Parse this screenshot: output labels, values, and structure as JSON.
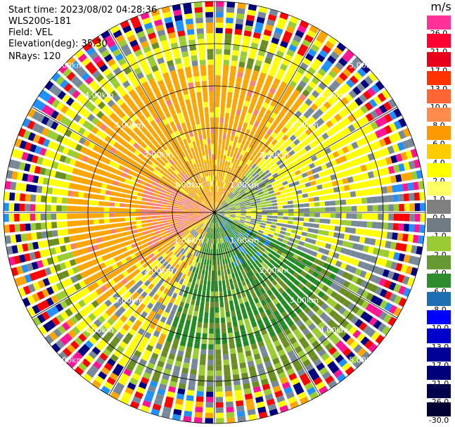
{
  "header": {
    "start_time": "Start time: 2023/08/02 04:28:36",
    "station": "WLS200s-181",
    "field": "Field: VEL",
    "elevation": "Elevation(deg): 35.30",
    "nrays": "NRays: 120"
  },
  "colorbar": {
    "unit": "m/s",
    "levels": [
      {
        "label": "26.0",
        "color": "#ff3399"
      },
      {
        "label": "21.0",
        "color": "#ff0033"
      },
      {
        "label": "17.0",
        "color": "#e8001a"
      },
      {
        "label": "13.0",
        "color": "#ff3300"
      },
      {
        "label": "10.0",
        "color": "#ff6633"
      },
      {
        "label": "8.0",
        "color": "#ff8c4d"
      },
      {
        "label": "6.0",
        "color": "#ff9900"
      },
      {
        "label": "4.0",
        "color": "#ffcc00"
      },
      {
        "label": "2.0",
        "color": "#ffff00"
      },
      {
        "label": "1.0",
        "color": "#ffff66"
      },
      {
        "label": "0.0",
        "color": "#808080"
      },
      {
        "label": "-1.0",
        "color": "#707b84"
      },
      {
        "label": "-2.0",
        "color": "#99cc33"
      },
      {
        "label": "-4.0",
        "color": "#669933"
      },
      {
        "label": "-6.0",
        "color": "#2e8b2e"
      },
      {
        "label": "-8.0",
        "color": "#1e6eb4"
      },
      {
        "label": "-10.0",
        "color": "#0000ff"
      },
      {
        "label": "-13.0",
        "color": "#0000cc"
      },
      {
        "label": "-17.0",
        "color": "#000099"
      },
      {
        "label": "-21.0",
        "color": "#00007a"
      },
      {
        "label": "-26.0",
        "color": "#00004d"
      },
      {
        "label": "-30.0",
        "color": "#000033"
      }
    ]
  },
  "range_rings": {
    "labels": [
      "1.00km",
      "2.00km",
      "3.00km",
      "4.00km",
      "5.00km"
    ]
  },
  "palette": {
    "orange": "#ffa500",
    "salmon": "#fa8072",
    "yellow": "#ffff00",
    "gray": "#778899",
    "lightgreen": "#9acd32",
    "olive": "#6b8e23",
    "green": "#228b22",
    "blue": "#1e90ff",
    "navy": "#000080",
    "red": "#ff0000",
    "pink": "#ff1493",
    "background": "#ffffff"
  }
}
